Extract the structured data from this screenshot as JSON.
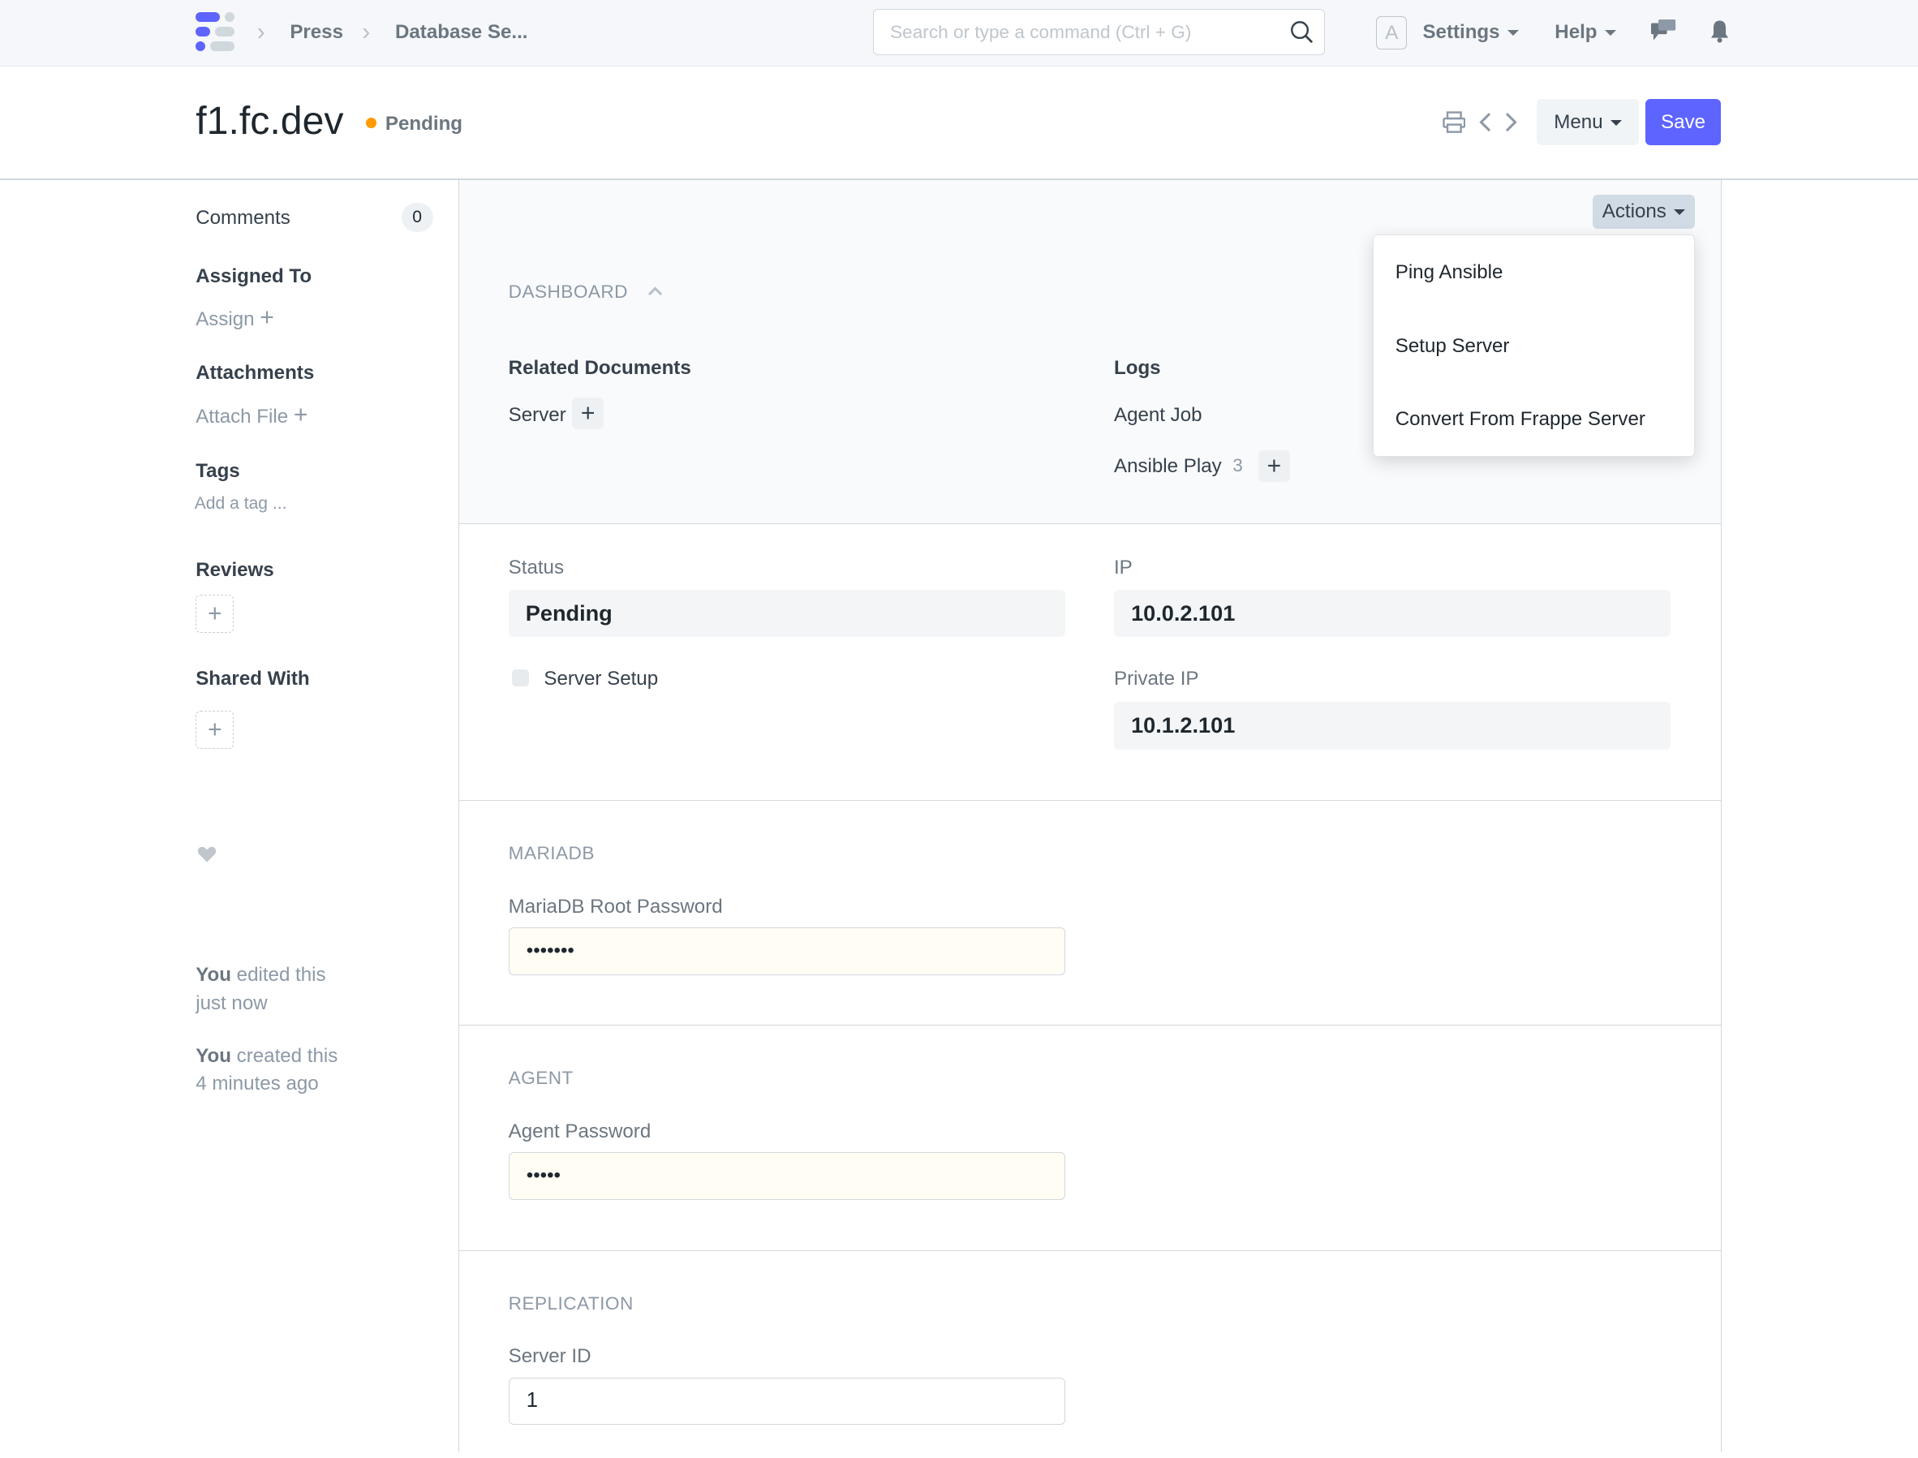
{
  "navbar": {
    "breadcrumbs": [
      "Press",
      "Database Se..."
    ],
    "search_placeholder": "Search or type a command (Ctrl + G)",
    "avatar_letter": "A",
    "settings_label": "Settings",
    "help_label": "Help",
    "brand_color": "#5e64ff"
  },
  "header": {
    "title": "f1.fc.dev",
    "status": "Pending",
    "status_color": "#ff9a00",
    "menu_label": "Menu",
    "save_label": "Save"
  },
  "sidebar": {
    "comments_label": "Comments",
    "comments_count": "0",
    "assigned_to": "Assigned To",
    "assign": "Assign",
    "attachments": "Attachments",
    "attach_file": "Attach File",
    "tags": "Tags",
    "add_tag": "Add a tag ...",
    "reviews": "Reviews",
    "shared_with": "Shared With",
    "activity": [
      {
        "who": "You",
        "text": " edited this",
        "when": "just now"
      },
      {
        "who": "You",
        "text": " created this",
        "when": "4 minutes ago"
      }
    ]
  },
  "form": {
    "actions_label": "Actions",
    "actions_menu": [
      "Ping Ansible",
      "Setup Server",
      "Convert From Frappe Server"
    ],
    "dashboard": {
      "title": "DASHBOARD",
      "related_documents": "Related Documents",
      "server": "Server",
      "logs": "Logs",
      "agent_job": "Agent Job",
      "ansible_play": "Ansible Play",
      "ansible_play_count": "3"
    },
    "status_label": "Status",
    "status_value": "Pending",
    "server_setup_label": "Server Setup",
    "ip_label": "IP",
    "ip_value": "10.0.2.101",
    "private_ip_label": "Private IP",
    "private_ip_value": "10.1.2.101",
    "mariadb": {
      "title": "MARIADB",
      "label": "MariaDB Root Password",
      "value": "•••••••"
    },
    "agent": {
      "title": "AGENT",
      "label": "Agent Password",
      "value": "•••••"
    },
    "replication": {
      "title": "REPLICATION",
      "label": "Server ID",
      "value": "1"
    }
  }
}
